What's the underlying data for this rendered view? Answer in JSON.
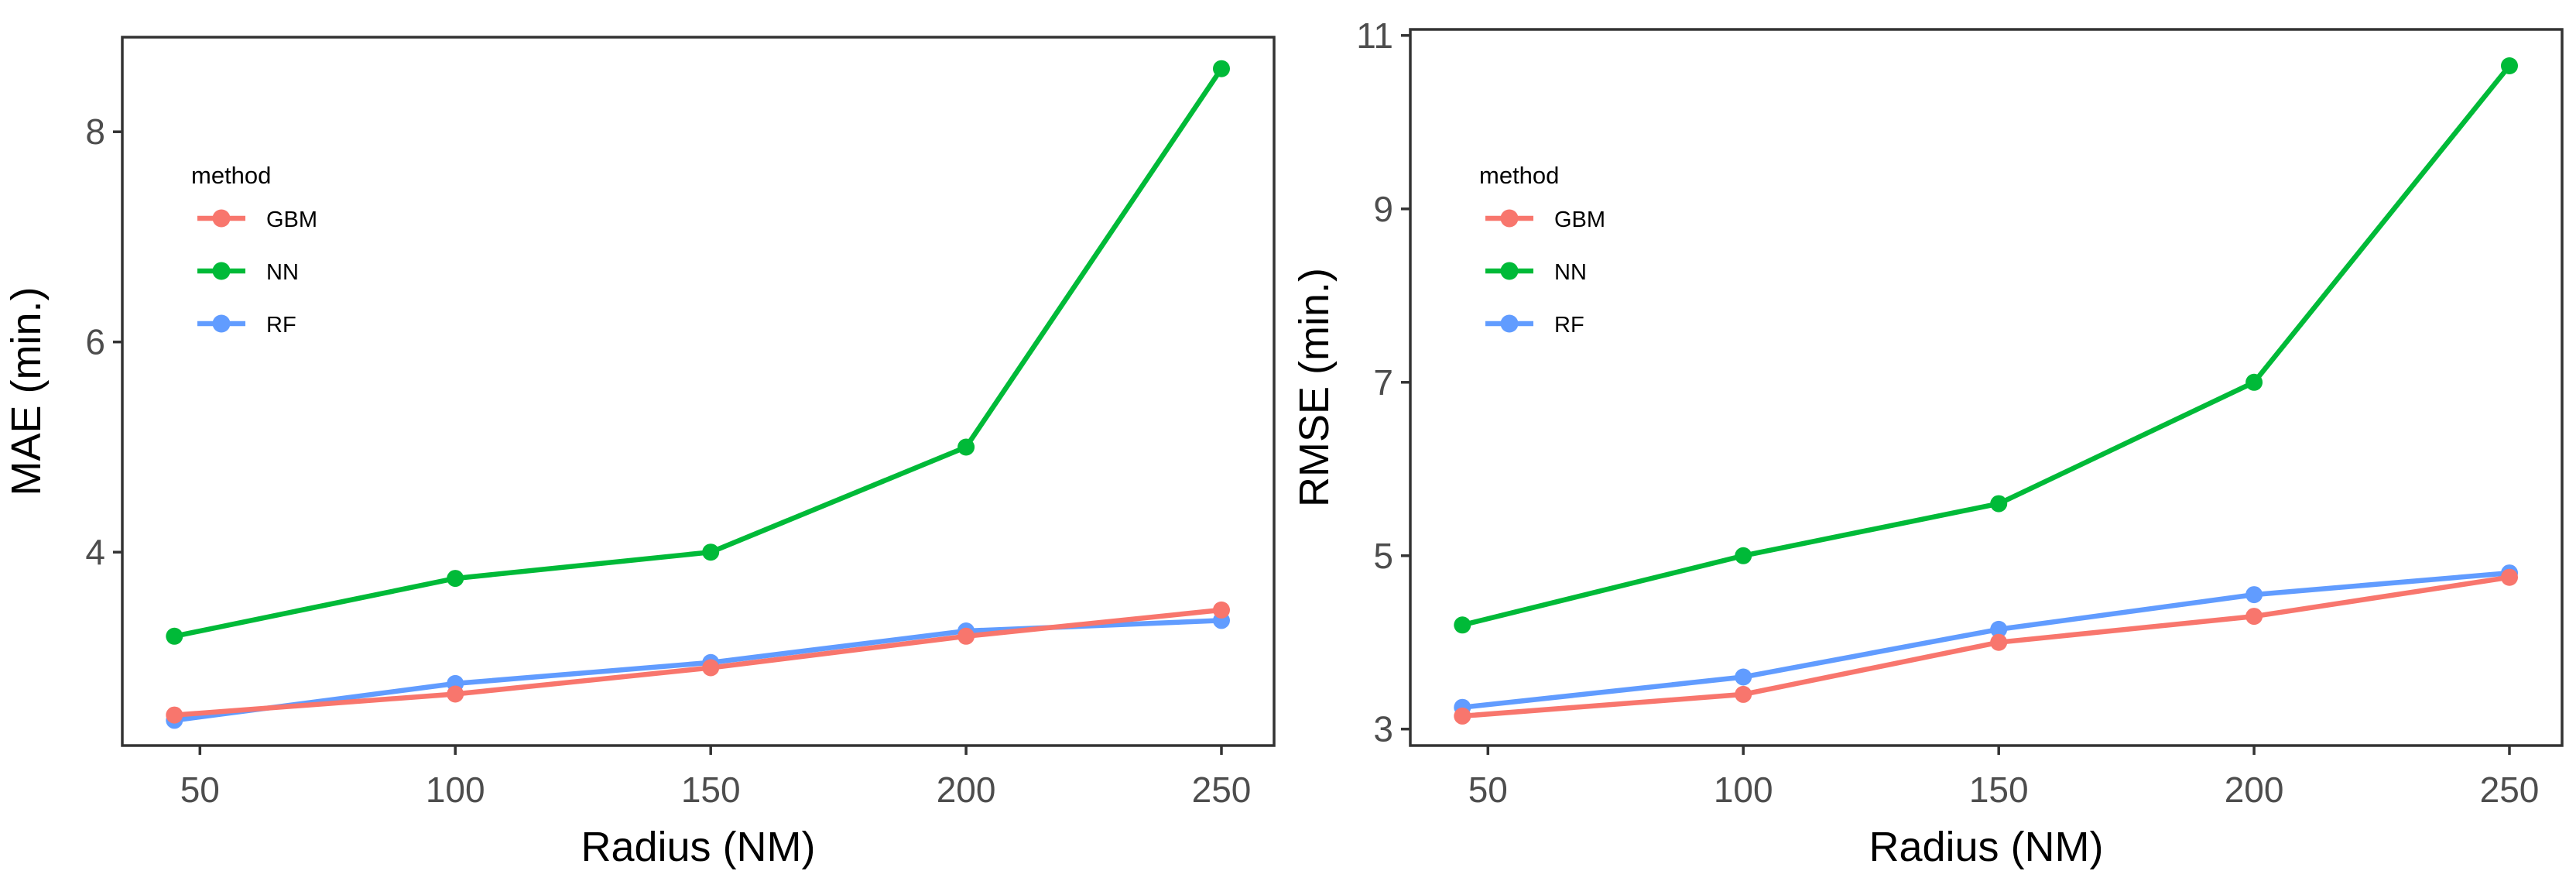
{
  "style": {
    "background": "#FFFFFF",
    "panel_border_color": "#333333",
    "tick_color": "#333333",
    "tick_label_color": "#4D4D4D",
    "axis_title_color": "#000000",
    "legend_text_color": "#000000",
    "series_colors": {
      "GBM": "#F8766D",
      "NN": "#00BA38",
      "RF": "#619CFF"
    }
  },
  "chart_data": [
    {
      "type": "line",
      "title": "",
      "xlabel": "Radius (NM)",
      "ylabel": "MAE (min.)",
      "x": [
        45,
        100,
        150,
        200,
        250
      ],
      "x_ticks": [
        50,
        100,
        150,
        200,
        250
      ],
      "y_ticks": [
        4,
        6,
        8
      ],
      "xlim": [
        34.8,
        260.3
      ],
      "ylim": [
        2.16,
        8.9
      ],
      "grid": false,
      "legend": {
        "title": "method",
        "position": "upper-left",
        "entries": [
          "GBM",
          "NN",
          "RF"
        ]
      },
      "series": [
        {
          "name": "GBM",
          "color": "#F8766D",
          "values": [
            2.45,
            2.65,
            2.9,
            3.2,
            3.45
          ]
        },
        {
          "name": "NN",
          "color": "#00BA38",
          "values": [
            3.2,
            3.75,
            4.0,
            5.0,
            8.6
          ]
        },
        {
          "name": "RF",
          "color": "#619CFF",
          "values": [
            2.4,
            2.75,
            2.95,
            3.25,
            3.35
          ]
        }
      ]
    },
    {
      "type": "line",
      "title": "",
      "xlabel": "Radius (NM)",
      "ylabel": "RMSE (min.)",
      "x": [
        45,
        100,
        150,
        200,
        250
      ],
      "x_ticks": [
        50,
        100,
        150,
        200,
        250
      ],
      "y_ticks": [
        3,
        5,
        7,
        9,
        11
      ],
      "xlim": [
        34.8,
        260.3
      ],
      "ylim": [
        2.81,
        11.07
      ],
      "grid": false,
      "legend": {
        "title": "method",
        "position": "upper-left",
        "entries": [
          "GBM",
          "NN",
          "RF"
        ]
      },
      "series": [
        {
          "name": "GBM",
          "color": "#F8766D",
          "values": [
            3.15,
            3.4,
            4.0,
            4.3,
            4.75
          ]
        },
        {
          "name": "NN",
          "color": "#00BA38",
          "values": [
            4.2,
            5.0,
            5.6,
            7.0,
            10.65
          ]
        },
        {
          "name": "RF",
          "color": "#619CFF",
          "values": [
            3.25,
            3.6,
            4.15,
            4.55,
            4.8
          ]
        }
      ]
    }
  ]
}
